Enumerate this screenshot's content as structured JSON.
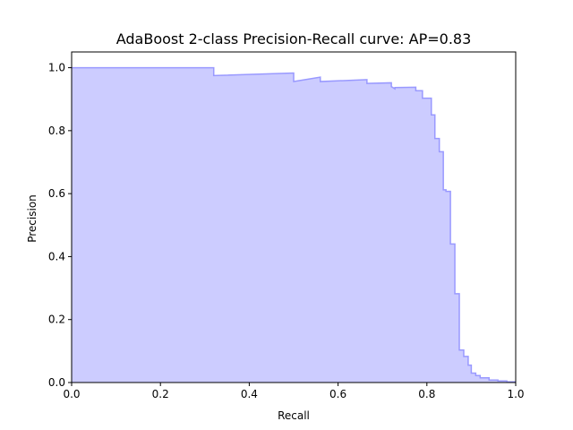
{
  "chart_data": {
    "type": "area",
    "title": "AdaBoost 2-class Precision-Recall curve: AP=0.83",
    "xlabel": "Recall",
    "ylabel": "Precision",
    "xlim": [
      0.0,
      1.0
    ],
    "ylim": [
      0.0,
      1.05
    ],
    "xticks": [
      0.0,
      0.2,
      0.4,
      0.6,
      0.8,
      1.0
    ],
    "yticks": [
      0.0,
      0.2,
      0.4,
      0.6,
      0.8,
      1.0
    ],
    "xtick_labels": [
      "0.0",
      "0.2",
      "0.4",
      "0.6",
      "0.8",
      "1.0"
    ],
    "ytick_labels": [
      "0.0",
      "0.2",
      "0.4",
      "0.6",
      "0.8",
      "1.0"
    ],
    "grid": false,
    "colors": {
      "line": "#9999ff",
      "fill": "#ccccff"
    },
    "series": [
      {
        "step": "post",
        "recall": [
          0.0,
          0.32,
          0.32,
          0.5,
          0.5,
          0.56,
          0.56,
          0.665,
          0.665,
          0.72,
          0.72,
          0.728,
          0.728,
          0.775,
          0.775,
          0.79,
          0.79,
          0.81,
          0.81,
          0.818,
          0.818,
          0.828,
          0.828,
          0.837,
          0.837,
          0.843,
          0.843,
          0.853,
          0.853,
          0.863,
          0.863,
          0.873,
          0.873,
          0.883,
          0.883,
          0.893,
          0.893,
          0.9,
          0.9,
          0.91,
          0.91,
          0.92,
          0.92,
          0.94,
          0.94,
          0.96,
          0.96,
          0.98,
          0.98,
          1.0
        ],
        "precision": [
          1.0,
          1.0,
          0.975,
          0.983,
          0.956,
          0.97,
          0.956,
          0.962,
          0.95,
          0.952,
          0.94,
          0.933,
          0.937,
          0.938,
          0.927,
          0.927,
          0.903,
          0.903,
          0.85,
          0.85,
          0.775,
          0.775,
          0.733,
          0.733,
          0.612,
          0.612,
          0.607,
          0.607,
          0.44,
          0.44,
          0.282,
          0.282,
          0.103,
          0.103,
          0.083,
          0.083,
          0.055,
          0.055,
          0.03,
          0.03,
          0.022,
          0.022,
          0.015,
          0.015,
          0.008,
          0.008,
          0.005,
          0.005,
          0.002,
          0.002
        ]
      }
    ]
  }
}
